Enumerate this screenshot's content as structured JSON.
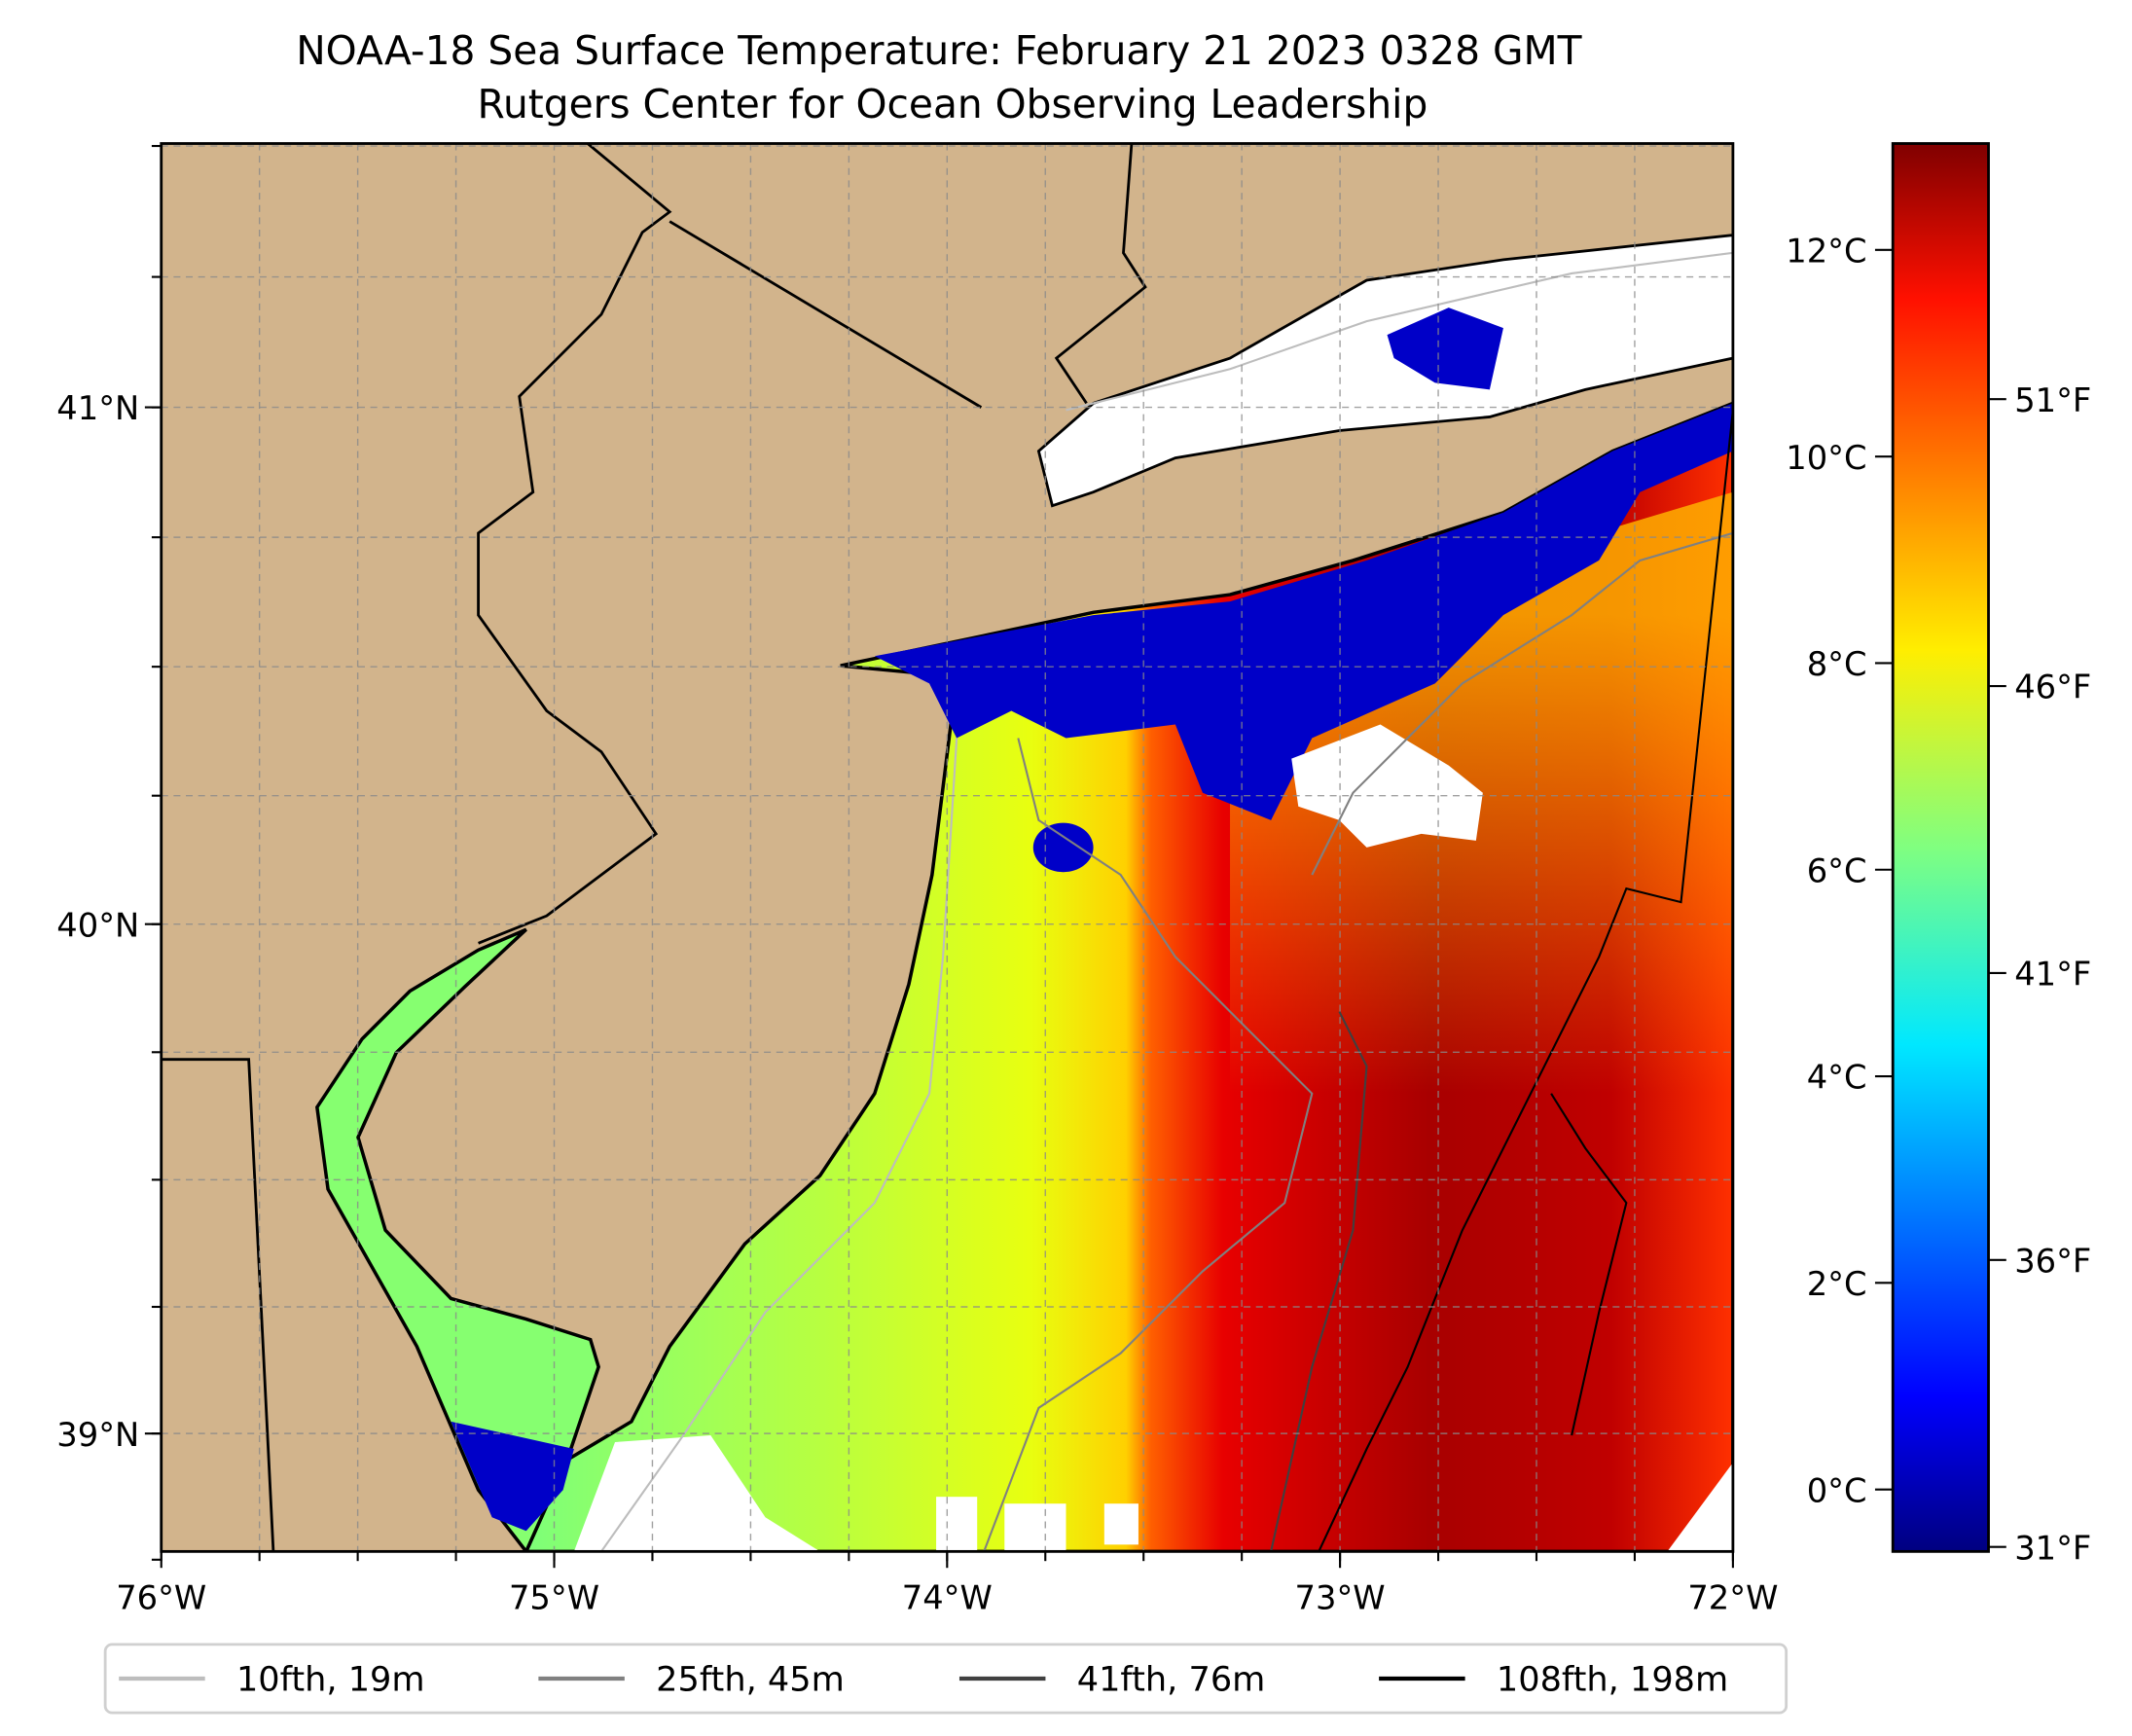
{
  "chart_data": {
    "type": "heatmap",
    "title": "NOAA-18 Sea Surface Temperature: February 21 2023 0328 GMT",
    "subtitle": "Rutgers Center for Ocean Observing Leadership",
    "projection": "mercator",
    "extent": {
      "lon": [
        -76,
        -72
      ],
      "lat": [
        38.75,
        41.52
      ]
    },
    "lon_ticks": [
      {
        "value": -76,
        "label": "76°W"
      },
      {
        "value": -75,
        "label": "75°W"
      },
      {
        "value": -74,
        "label": "74°W"
      },
      {
        "value": -73,
        "label": "73°W"
      },
      {
        "value": -72,
        "label": "72°W"
      }
    ],
    "lat_ticks": [
      {
        "value": 41,
        "label": "41°N"
      },
      {
        "value": 40,
        "label": "40°N"
      },
      {
        "value": 39,
        "label": "39°N"
      }
    ],
    "grid": true,
    "grid_step_deg": 0.25,
    "colorbar": {
      "colormap": "jet",
      "range_c": [
        -0.6,
        13.03
      ],
      "celsius_ticks": [
        {
          "value": 0,
          "label": "0°C"
        },
        {
          "value": 2,
          "label": "2°C"
        },
        {
          "value": 4,
          "label": "4°C"
        },
        {
          "value": 6,
          "label": "6°C"
        },
        {
          "value": 8,
          "label": "8°C"
        },
        {
          "value": 10,
          "label": "10°C"
        },
        {
          "value": 12,
          "label": "12°C"
        }
      ],
      "fahrenheit_ticks": [
        {
          "value": 31,
          "label": "31°F"
        },
        {
          "value": 36,
          "label": "36°F"
        },
        {
          "value": 41,
          "label": "41°F"
        },
        {
          "value": 46,
          "label": "46°F"
        },
        {
          "value": 51,
          "label": "51°F"
        }
      ]
    },
    "legend": {
      "placement": "bottom",
      "entries": [
        {
          "label": "10fth, 19m",
          "color": "#bdbdbd"
        },
        {
          "label": "25fth, 45m",
          "color": "#808080"
        },
        {
          "label": "41fth, 76m",
          "color": "#404040"
        },
        {
          "label": "108fth, 198m",
          "color": "#000000"
        }
      ]
    },
    "colors": {
      "land": "#d2b48c",
      "no_data": "#ffffff",
      "coast": "#000000"
    }
  }
}
